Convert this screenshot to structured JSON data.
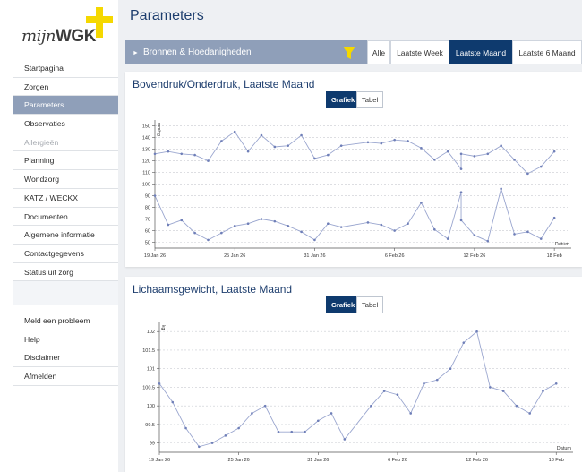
{
  "brand": {
    "logo_italic": "mijn",
    "logo_bold": "WGK",
    "accent": "#f5d800"
  },
  "header": {
    "title": "Parameters"
  },
  "sidebar": {
    "items": [
      {
        "label": "Startpagina",
        "active": false,
        "disabled": false
      },
      {
        "label": "Zorgen",
        "active": false,
        "disabled": false
      },
      {
        "label": "Parameters",
        "active": true,
        "disabled": false
      },
      {
        "label": "Observaties",
        "active": false,
        "disabled": false
      },
      {
        "label": "Allergieën",
        "active": false,
        "disabled": true
      },
      {
        "label": "Planning",
        "active": false,
        "disabled": false
      },
      {
        "label": "Wondzorg",
        "active": false,
        "disabled": false
      },
      {
        "label": "KATZ / WECKX",
        "active": false,
        "disabled": false
      },
      {
        "label": "Documenten",
        "active": false,
        "disabled": false
      },
      {
        "label": "Algemene informatie",
        "active": false,
        "disabled": false
      },
      {
        "label": "Contactgegevens",
        "active": false,
        "disabled": false
      },
      {
        "label": "Status uit zorg",
        "active": false,
        "disabled": false
      }
    ],
    "footer_items": [
      {
        "label": "Meld een probleem"
      },
      {
        "label": "Help"
      },
      {
        "label": "Disclaimer"
      },
      {
        "label": "Afmelden"
      }
    ]
  },
  "filterbar": {
    "label": "Bronnen & Hoedanigheden",
    "filter_icon": "funnel-icon",
    "periods": [
      {
        "label": "Alle",
        "active": false
      },
      {
        "label": "Laatste Week",
        "active": false
      },
      {
        "label": "Laatste Maand",
        "active": true
      },
      {
        "label": "Laatste 6 Maand",
        "active": false
      }
    ]
  },
  "cards": [
    {
      "title": "Bovendruk/Onderdruk, Laatste Maand",
      "toggle_graph": "Grafiek",
      "toggle_table": "Tabel"
    },
    {
      "title": "Lichaamsgewicht, Laatste Maand",
      "toggle_graph": "Grafiek",
      "toggle_table": "Tabel"
    }
  ],
  "chart_data": [
    {
      "type": "line",
      "ylabel": "mmHg",
      "xlabel": "Datum",
      "ylim": [
        45,
        152
      ],
      "yticks": [
        50,
        60,
        70,
        80,
        90,
        100,
        110,
        120,
        130,
        140,
        150
      ],
      "x_range": [
        0,
        31
      ],
      "xticks": [
        {
          "v": 0,
          "label": "19 Jan 26"
        },
        {
          "v": 6,
          "label": "25 Jan 26"
        },
        {
          "v": 12,
          "label": "31 Jan 26"
        },
        {
          "v": 18,
          "label": "6 Feb 26"
        },
        {
          "v": 24,
          "label": "12 Feb 26"
        },
        {
          "v": 30,
          "label": "18 Feb"
        }
      ],
      "grid": true,
      "series": [
        {
          "x": [
            0,
            1,
            2,
            3,
            4,
            5,
            6,
            7,
            8,
            9,
            10,
            11,
            12,
            13,
            14,
            16,
            17,
            18,
            19,
            20,
            21,
            22,
            23,
            23,
            24,
            25,
            26,
            27,
            28,
            29,
            30
          ],
          "y": [
            126,
            128,
            126,
            125,
            120,
            137,
            145,
            128,
            142,
            132,
            133,
            142,
            122,
            125,
            133,
            136,
            135,
            138,
            137,
            131,
            121,
            128,
            113,
            126,
            124,
            126,
            133,
            121,
            109,
            115,
            128
          ]
        },
        {
          "x": [
            0,
            1,
            2,
            3,
            4,
            5,
            6,
            7,
            8,
            9,
            10,
            11,
            12,
            13,
            14,
            16,
            17,
            18,
            19,
            20,
            21,
            22,
            23,
            23,
            24,
            25,
            26,
            27,
            28,
            29,
            30
          ],
          "y": [
            90,
            65,
            69,
            58,
            52,
            58,
            64,
            66,
            70,
            68,
            64,
            59,
            52,
            66,
            63,
            67,
            65,
            60,
            66,
            84,
            61,
            53,
            93,
            69,
            56,
            51,
            96,
            57,
            59,
            53,
            71
          ]
        }
      ]
    },
    {
      "type": "line",
      "ylabel": "kg",
      "xlabel": "Datum",
      "ylim": [
        98.75,
        102.15
      ],
      "yticks": [
        99,
        99.5,
        100,
        100.5,
        101,
        101.5,
        102
      ],
      "x_range": [
        0,
        31
      ],
      "xticks": [
        {
          "v": 0,
          "label": "19 Jan 26"
        },
        {
          "v": 6,
          "label": "25 Jan 26"
        },
        {
          "v": 12,
          "label": "31 Jan 26"
        },
        {
          "v": 18,
          "label": "6 Feb 26"
        },
        {
          "v": 24,
          "label": "12 Feb 26"
        },
        {
          "v": 30,
          "label": "18 Feb"
        }
      ],
      "grid": true,
      "series": [
        {
          "x": [
            0,
            1,
            2,
            3,
            4,
            5,
            6,
            7,
            8,
            9,
            10,
            11,
            12,
            13,
            14,
            16,
            17,
            18,
            19,
            20,
            21,
            22,
            23,
            24,
            25,
            26,
            27,
            28,
            29,
            30
          ],
          "y": [
            100.6,
            100.1,
            99.4,
            98.9,
            99.0,
            99.2,
            99.4,
            99.8,
            100.0,
            99.3,
            99.3,
            99.3,
            99.6,
            99.8,
            99.1,
            100.0,
            100.4,
            100.3,
            99.8,
            100.6,
            100.7,
            101.0,
            101.7,
            102.0,
            100.5,
            100.4,
            100.0,
            99.8,
            100.4,
            100.6
          ]
        }
      ]
    }
  ]
}
